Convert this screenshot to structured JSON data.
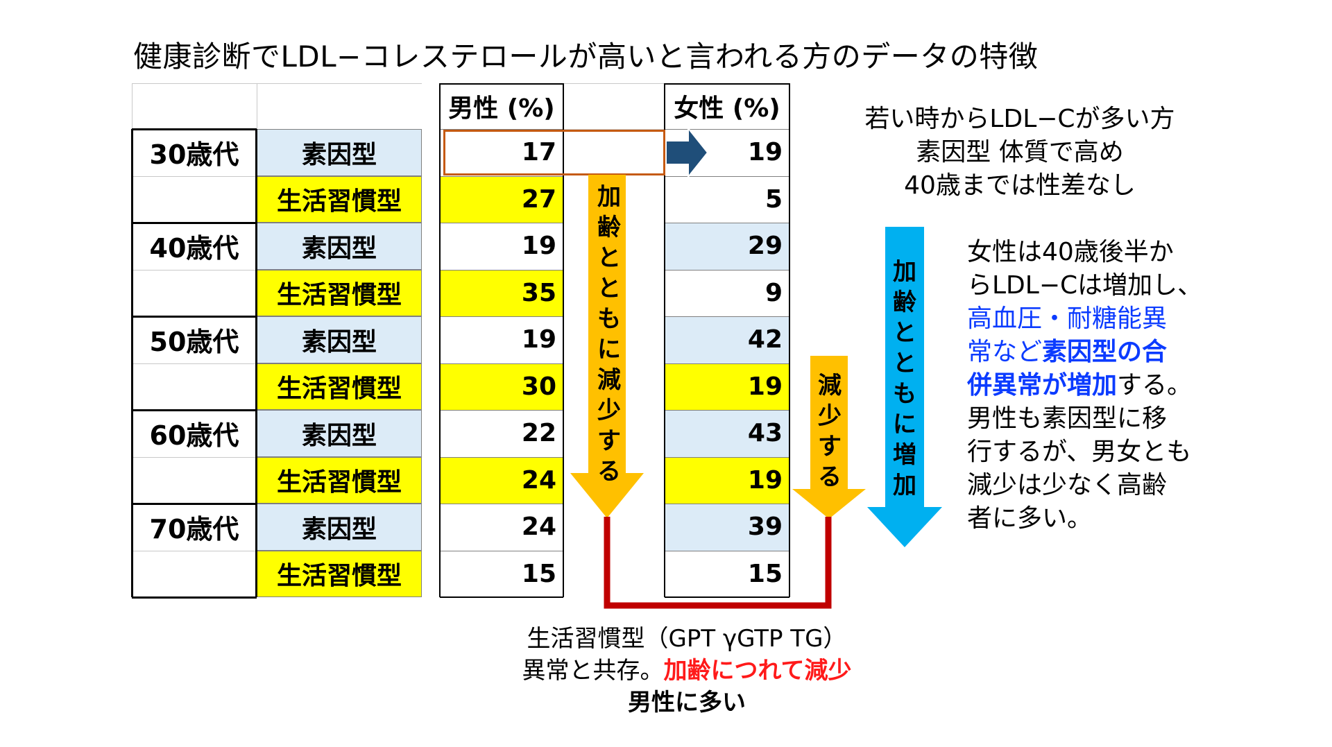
{
  "title": "健康診断でLDL−コレステロールが高いと言われる方のデータの特徴",
  "table": {
    "header_male": "男性 (%)",
    "header_female": "女性 (%)",
    "rows": [
      {
        "age": "30歳代",
        "type": "素因型",
        "male": "17",
        "female": "19",
        "color": "blue"
      },
      {
        "age": "",
        "type": "生活習慣型",
        "male": "27",
        "female": "5",
        "color": "yellow"
      },
      {
        "age": "40歳代",
        "type": "素因型",
        "male": "19",
        "female": "29",
        "color": "blue"
      },
      {
        "age": "",
        "type": "生活習慣型",
        "male": "35",
        "female": "9",
        "color": "yellow"
      },
      {
        "age": "50歳代",
        "type": "素因型",
        "male": "19",
        "female": "42",
        "color": "blue"
      },
      {
        "age": "",
        "type": "生活習慣型",
        "male": "30",
        "female": "19",
        "color": "yellow"
      },
      {
        "age": "60歳代",
        "type": "素因型",
        "male": "22",
        "female": "43",
        "color": "blue"
      },
      {
        "age": "",
        "type": "生活習慣型",
        "male": "24",
        "female": "19",
        "color": "yellow"
      },
      {
        "age": "70歳代",
        "type": "素因型",
        "male": "24",
        "female": "39",
        "color": "blue"
      },
      {
        "age": "",
        "type": "生活習慣型",
        "male": "15",
        "female": "15",
        "color": "yellow"
      }
    ],
    "male_highlight": [
      "",
      "yellow",
      "",
      "yellow",
      "",
      "yellow",
      "",
      "yellow",
      "",
      ""
    ],
    "female_highlight": [
      "",
      "",
      "blue",
      "",
      "blue",
      "yellow",
      "blue",
      "yellow",
      "blue",
      ""
    ]
  },
  "arrows": {
    "male_decrease": "加齢とともに減少する",
    "female_decrease": "減少する",
    "female_increase": "加齢とともに増加"
  },
  "notes": {
    "young": [
      "若い時からLDL−Cが多い方",
      "素因型 体質で高め",
      "40歳までは性差なし"
    ],
    "female_1": "女性は40歳後半か",
    "female_2": "らLDL−Cは増加し、",
    "female_3": "高血圧・耐糖能異",
    "female_4a": "常など",
    "female_4b": "素因型の合",
    "female_5a": "併異常が増加",
    "female_5b": "する。",
    "female_6": "男性も素因型に移",
    "female_7": "行するが、男女とも",
    "female_8": "減少は少なく高齢",
    "female_9": "者に多い。",
    "lifestyle_1": "生活習慣型（GPT γGTP TG）",
    "lifestyle_2a": "異常と共存。",
    "lifestyle_2b": "加齢につれて減少",
    "lifestyle_3": "男性に多い"
  },
  "colors": {
    "blue_cell": "#dcebf7",
    "yellow_cell": "#ffff00",
    "orange_arrow": "#ffc000",
    "sky_arrow": "#00b0f0",
    "navy_arrow": "#1f4e79",
    "red_line": "#c00000",
    "highlight_box": "#c55a11"
  }
}
